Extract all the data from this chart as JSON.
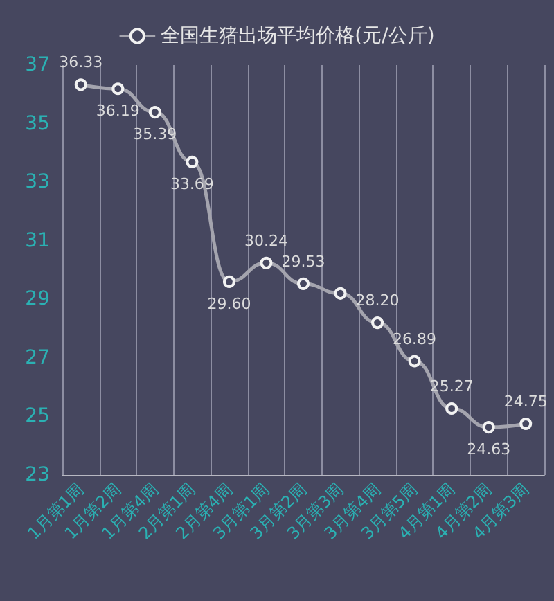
{
  "chart_data": {
    "type": "line",
    "categories": [
      "1月第1周",
      "1月第2周",
      "1月第4周",
      "2月第1周",
      "2月第4周",
      "3月第1周",
      "3月第2周",
      "3月第3周",
      "3月第4周",
      "3月第5周",
      "4月第1周",
      "4月第2周",
      "4月第3周"
    ],
    "series": [
      {
        "name": "全国生猪出场平均价格(元/公斤)",
        "color": "#a4a4ae",
        "values": [
          36.33,
          36.19,
          35.39,
          33.69,
          29.6,
          30.24,
          29.53,
          29.2,
          28.2,
          26.89,
          25.27,
          24.63,
          24.75
        ],
        "value_labels": [
          "36.33",
          "36.19",
          "35.39",
          "33.69",
          "29.60",
          "30.24",
          "29.53",
          null,
          "28.20",
          "26.89",
          "25.27",
          "24.63",
          "24.75"
        ]
      }
    ],
    "ylim": [
      23,
      37
    ],
    "yticks": [
      23,
      25,
      27,
      29,
      31,
      33,
      35,
      37
    ],
    "grid": "x",
    "legend": "top",
    "marker": "circle",
    "line_style": "solid"
  }
}
